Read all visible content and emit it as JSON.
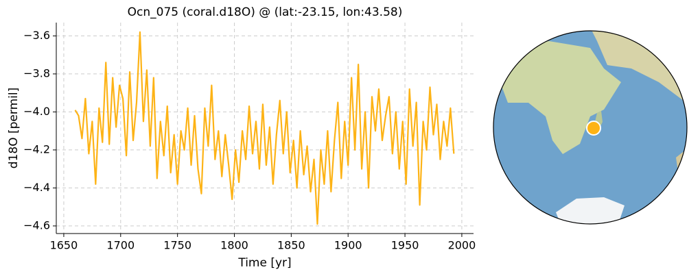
{
  "chart_data": {
    "type": "line",
    "title": "Ocn_075 (coral.d18O) @ (lat:-23.15, lon:43.58)",
    "x_label": "Time [yr]",
    "y_label": "d18O [permil]",
    "x": [
      1660,
      1663,
      1666,
      1669,
      1672,
      1675,
      1678,
      1681,
      1684,
      1687,
      1690,
      1693,
      1696,
      1699,
      1702,
      1705,
      1708,
      1711,
      1714,
      1717,
      1720,
      1723,
      1726,
      1729,
      1732,
      1735,
      1738,
      1741,
      1744,
      1747,
      1750,
      1753,
      1756,
      1759,
      1762,
      1765,
      1768,
      1771,
      1774,
      1777,
      1780,
      1783,
      1786,
      1789,
      1792,
      1795,
      1798,
      1801,
      1804,
      1807,
      1810,
      1813,
      1816,
      1819,
      1822,
      1825,
      1828,
      1831,
      1834,
      1837,
      1840,
      1843,
      1846,
      1849,
      1852,
      1855,
      1858,
      1861,
      1864,
      1867,
      1870,
      1873,
      1876,
      1879,
      1882,
      1885,
      1888,
      1891,
      1894,
      1897,
      1900,
      1903,
      1906,
      1909,
      1912,
      1915,
      1918,
      1921,
      1924,
      1927,
      1930,
      1933,
      1936,
      1939,
      1942,
      1945,
      1948,
      1951,
      1954,
      1957,
      1960,
      1963,
      1966,
      1969,
      1972,
      1975,
      1978,
      1981,
      1984,
      1987,
      1990,
      1993
    ],
    "series": [
      {
        "name": "Ocn_075",
        "color": "#fdb316",
        "values": [
          -3.99,
          -4.02,
          -4.14,
          -3.93,
          -4.22,
          -4.05,
          -4.38,
          -3.98,
          -4.16,
          -3.74,
          -4.17,
          -3.82,
          -4.08,
          -3.86,
          -3.93,
          -4.23,
          -3.79,
          -4.15,
          -3.95,
          -3.58,
          -4.05,
          -3.78,
          -4.18,
          -3.82,
          -4.35,
          -4.05,
          -4.23,
          -3.97,
          -4.32,
          -4.12,
          -4.38,
          -4.1,
          -4.2,
          -3.98,
          -4.28,
          -4.02,
          -4.3,
          -4.43,
          -3.98,
          -4.18,
          -3.86,
          -4.25,
          -4.1,
          -4.34,
          -4.12,
          -4.28,
          -4.46,
          -4.2,
          -4.37,
          -4.1,
          -4.25,
          -3.97,
          -4.22,
          -4.05,
          -4.3,
          -3.96,
          -4.28,
          -4.08,
          -4.38,
          -4.12,
          -3.94,
          -4.22,
          -4.0,
          -4.32,
          -4.15,
          -4.4,
          -4.1,
          -4.33,
          -4.18,
          -4.42,
          -4.25,
          -4.59,
          -4.2,
          -4.38,
          -4.1,
          -4.42,
          -4.15,
          -3.95,
          -4.35,
          -4.05,
          -4.28,
          -3.82,
          -4.2,
          -3.75,
          -4.3,
          -4.0,
          -4.4,
          -3.92,
          -4.1,
          -3.88,
          -4.15,
          -4.02,
          -3.92,
          -4.22,
          -4.0,
          -4.3,
          -4.05,
          -4.38,
          -3.88,
          -4.18,
          -3.95,
          -4.49,
          -4.05,
          -4.2,
          -3.87,
          -4.12,
          -3.96,
          -4.25,
          -4.05,
          -4.18,
          -3.98,
          -4.22
        ]
      }
    ],
    "xlim": [
      1643.4,
      2010.3
    ],
    "xticks": [
      1650,
      1700,
      1750,
      1800,
      1850,
      1900,
      1950,
      2000
    ],
    "ylim": [
      -4.64,
      -3.53
    ],
    "yticks": [
      {
        "value": -4.6,
        "label": "−4.6"
      },
      {
        "value": -4.4,
        "label": "−4.4"
      },
      {
        "value": -4.2,
        "label": "−4.2"
      },
      {
        "value": -4.0,
        "label": "−4.0"
      },
      {
        "value": -3.8,
        "label": "−3.8"
      },
      {
        "value": -3.6,
        "label": "−3.6"
      }
    ],
    "grid": true
  }
}
